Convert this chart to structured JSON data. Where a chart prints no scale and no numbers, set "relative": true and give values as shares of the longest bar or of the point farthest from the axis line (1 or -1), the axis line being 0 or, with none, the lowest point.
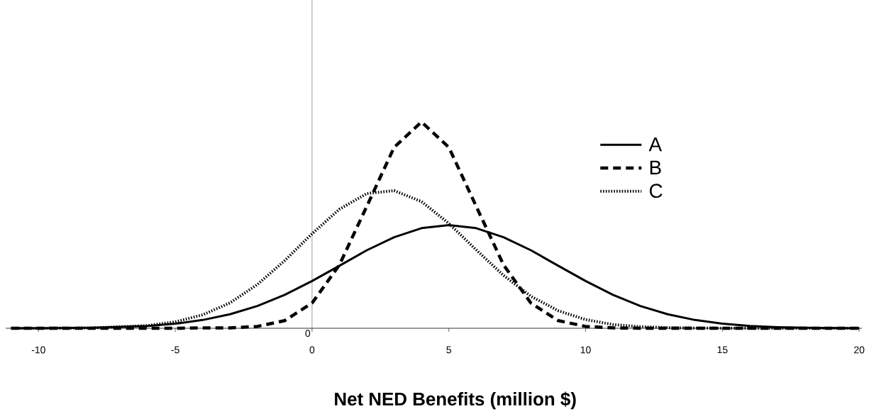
{
  "chart_data": {
    "type": "line",
    "relative": true,
    "xlabel": "Net NED Benefits (million $)",
    "x": [
      -11,
      -10,
      -8,
      -6,
      -5,
      -4,
      -3,
      -2,
      -1,
      0,
      1,
      2,
      3,
      4,
      5,
      6,
      7,
      8,
      9,
      10,
      11,
      12,
      13,
      14,
      15,
      16,
      17,
      18,
      20
    ],
    "xlim": [
      -11.2,
      20.1
    ],
    "xticks": [
      -10,
      -5,
      0,
      5,
      10,
      15,
      20
    ],
    "series": [
      {
        "name": "A",
        "color": "#000000",
        "line_style": "solid",
        "values": [
          0.0002,
          0.0004,
          0.0025,
          0.011,
          0.022,
          0.04,
          0.068,
          0.108,
          0.162,
          0.229,
          0.303,
          0.378,
          0.441,
          0.485,
          0.5,
          0.485,
          0.441,
          0.378,
          0.303,
          0.229,
          0.162,
          0.108,
          0.068,
          0.04,
          0.022,
          0.011,
          0.0055,
          0.0025,
          0.0004
        ]
      },
      {
        "name": "B",
        "color": "#000000",
        "line_style": "dashed",
        "values": [
          0,
          0,
          0,
          0,
          0,
          0.0017,
          0.0017,
          0.009,
          0.037,
          0.122,
          0.307,
          0.591,
          0.877,
          1,
          0.877,
          0.591,
          0.307,
          0.122,
          0.037,
          0.009,
          0.0016,
          0.0002,
          0,
          0,
          0,
          0,
          0,
          0,
          0
        ]
      },
      {
        "name": "C",
        "color": "#000000",
        "line_style": "dotted",
        "values": [
          0,
          0.00015,
          0.0017,
          0.013,
          0.031,
          0.065,
          0.123,
          0.212,
          0.328,
          0.458,
          0.577,
          0.653,
          0.667,
          0.614,
          0.508,
          0.38,
          0.256,
          0.155,
          0.085,
          0.042,
          0.018,
          0.0074,
          0.003,
          0.0009,
          0.0003,
          0,
          0,
          0,
          0
        ]
      }
    ],
    "legend": "right",
    "grid": false,
    "marker": "none",
    "ref_lines": [
      {
        "axis": "x",
        "value": 0,
        "color": "#808080"
      }
    ],
    "annotations": [
      "0"
    ]
  }
}
